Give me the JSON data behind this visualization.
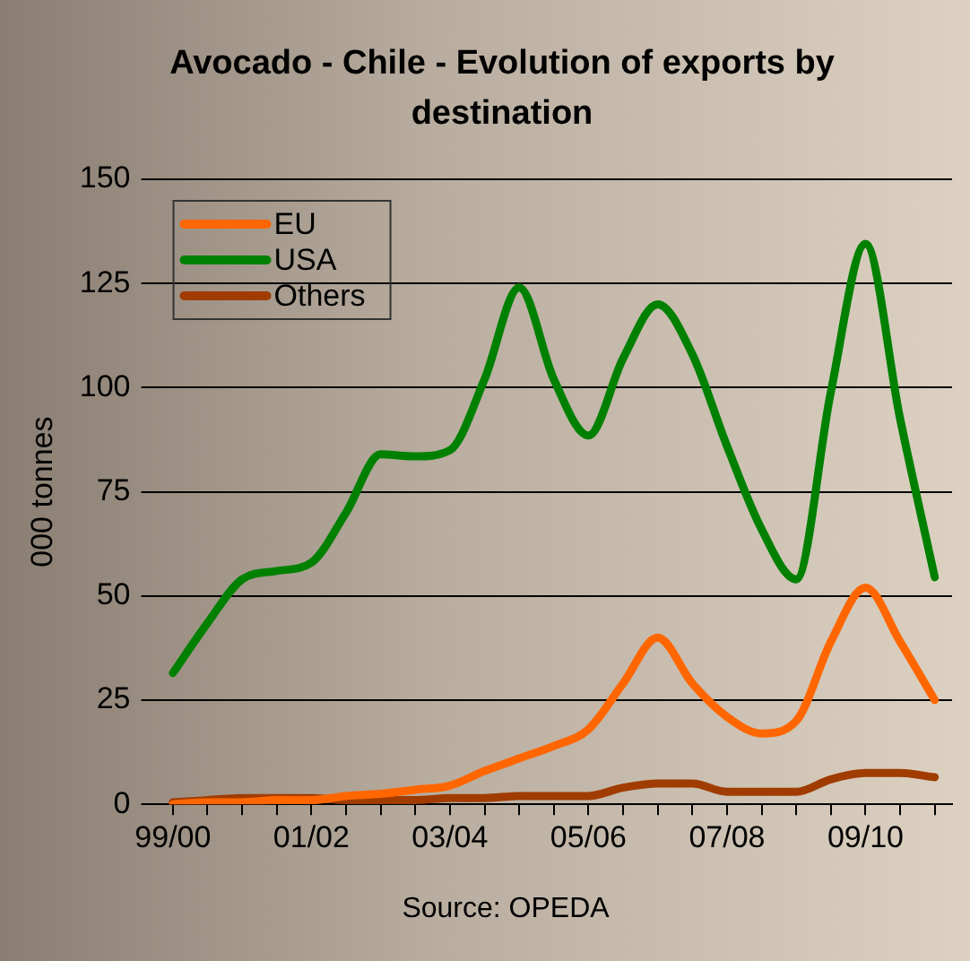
{
  "chart_data": {
    "type": "line",
    "title": "Avocado - Chile - Evolution of exports by destination",
    "ylabel": "000 tonnes",
    "annotations": [
      "Source: OPEDA"
    ],
    "categories": [
      "99/00",
      null,
      null,
      null,
      "01/02",
      null,
      null,
      null,
      "03/04",
      null,
      null,
      null,
      "05/06",
      null,
      null,
      null,
      "07/08",
      null,
      null,
      null,
      "09/10",
      null,
      null
    ],
    "series": [
      {
        "name": "EU",
        "color": "#ff6600",
        "values": [
          0,
          0.5,
          0.5,
          1,
          1,
          2,
          2.5,
          3.5,
          4.5,
          8,
          11,
          14,
          18,
          29,
          40,
          29,
          21,
          17,
          20,
          39,
          52,
          39,
          25
        ]
      },
      {
        "name": "USA",
        "color": "#008000",
        "values": [
          31.5,
          43.5,
          54,
          56,
          58,
          70,
          84,
          83.5,
          85,
          102,
          124,
          102,
          88.5,
          107,
          120,
          108,
          86,
          66,
          54,
          99,
          134.5,
          92.5,
          54.5
        ]
      },
      {
        "name": "Others",
        "color": "#a03c00",
        "values": [
          0.5,
          1,
          1.5,
          1.5,
          1.5,
          1,
          1,
          1,
          1.5,
          1.5,
          2,
          2,
          2,
          4,
          5,
          5,
          3,
          3,
          3,
          6,
          7.5,
          7.5,
          6.5
        ]
      }
    ],
    "ylim": [
      0,
      150
    ],
    "yticks": [
      0,
      25,
      50,
      75,
      100,
      125,
      150
    ],
    "grid": "y",
    "legend": "top left",
    "line_style": "solid",
    "marker": "none"
  }
}
